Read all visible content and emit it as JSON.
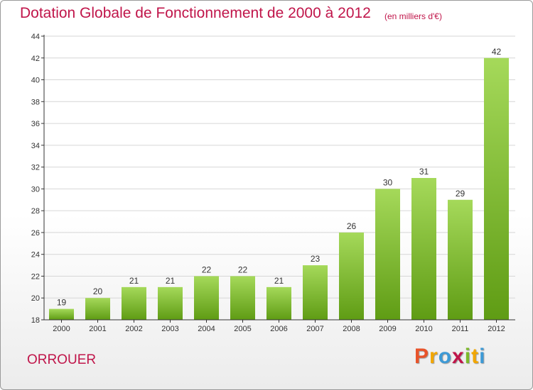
{
  "header": {
    "title": "Dotation Globale de Fonctionnement de 2000 à 2012",
    "unit": "(en milliers d'€)"
  },
  "footer": {
    "commune": "ORROUER",
    "brand": "Proxiti",
    "brand_colors": [
      "#e8542b",
      "#f2a600",
      "#3d9ad6",
      "#c0154a",
      "#7dba2a",
      "#f2a600",
      "#3d9ad6"
    ]
  },
  "colors": {
    "title": "#c0154a",
    "bar_top": "#a5d95a",
    "bar_bottom": "#5f9c14",
    "axis": "#333333",
    "grid": "#d6d6d6"
  },
  "chart_data": {
    "type": "bar",
    "title": "Dotation Globale de Fonctionnement de 2000 à 2012",
    "xlabel": "",
    "ylabel": "",
    "categories": [
      "2000",
      "2001",
      "2002",
      "2003",
      "2004",
      "2005",
      "2006",
      "2007",
      "2008",
      "2009",
      "2010",
      "2011",
      "2012"
    ],
    "values": [
      19,
      20,
      21,
      21,
      22,
      22,
      21,
      23,
      26,
      30,
      31,
      29,
      42
    ],
    "ylim": [
      18,
      44
    ],
    "yticks": [
      18,
      20,
      22,
      24,
      26,
      28,
      30,
      32,
      34,
      36,
      38,
      40,
      42,
      44
    ],
    "grid": true,
    "data_labels": true
  }
}
